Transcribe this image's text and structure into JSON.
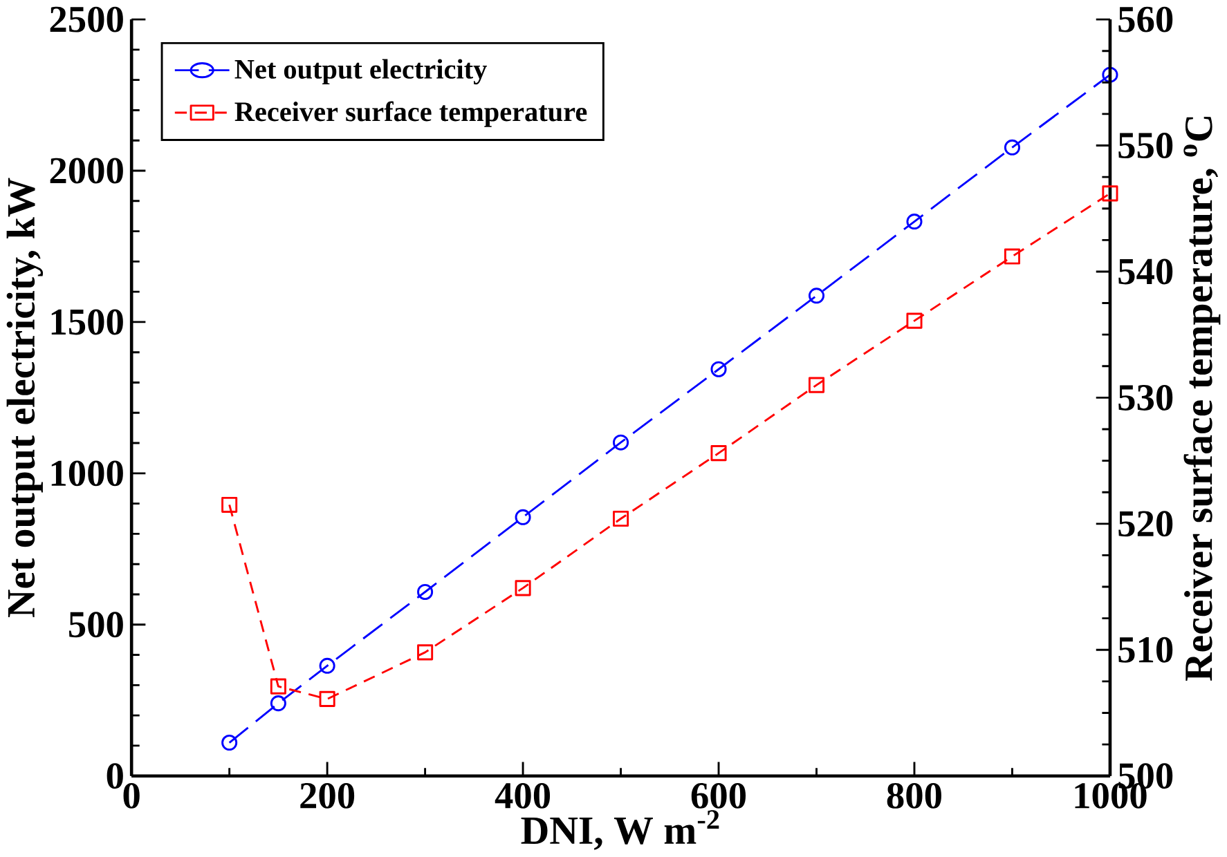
{
  "chart_data": {
    "type": "line",
    "xlabel": "DNI, W m$^{-2}$",
    "ylabel": "Net output electricity, kW",
    "y2label": "Receiver surface temperature, $^{o}$C",
    "x": [
      100,
      150,
      200,
      300,
      400,
      500,
      600,
      700,
      800,
      900,
      1000
    ],
    "series": [
      {
        "name": "Net output electricity",
        "color": "#0000ff",
        "marker": "circle",
        "line_style": "dashed",
        "values": [
          110,
          240,
          364,
          608,
          855,
          1102,
          1344,
          1587,
          1832,
          2077,
          2317
        ]
      },
      {
        "name": "Receiver surface temperature",
        "color": "#ff0000",
        "marker": "square",
        "line_style": "dashed",
        "axis": "y2",
        "values": [
          521.5,
          507.1,
          506.1,
          509.8,
          514.9,
          520.4,
          525.6,
          531.0,
          536.1,
          541.2,
          546.2
        ]
      }
    ],
    "xlim": [
      0,
      1000
    ],
    "xticks": [
      0,
      200,
      400,
      600,
      800,
      1000
    ],
    "ylim": [
      0,
      2500
    ],
    "yticks": [
      0,
      500,
      1000,
      1500,
      2000,
      2500
    ],
    "y2lim": [
      500,
      560
    ],
    "y2ticks": [
      500,
      510,
      520,
      530,
      540,
      550,
      560
    ],
    "legend": "top left",
    "grid": false
  }
}
